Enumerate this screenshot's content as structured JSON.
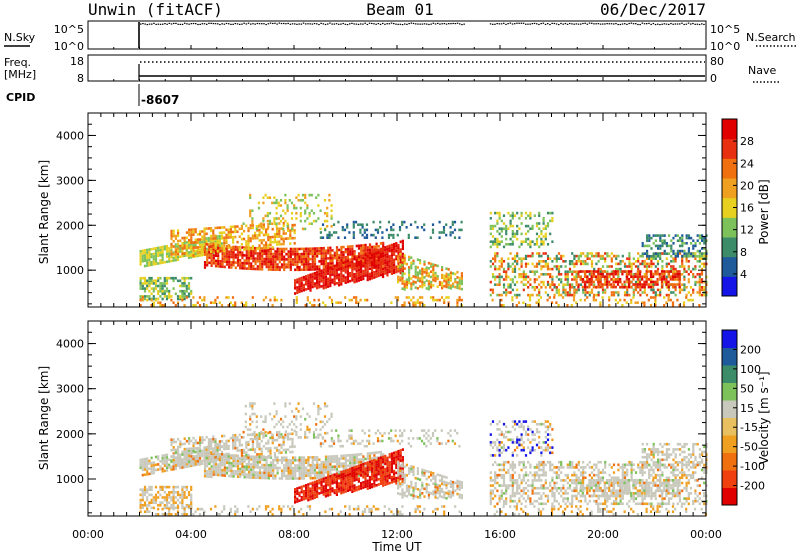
{
  "header": {
    "station": "Unwin (fitACF)",
    "beam": "Beam 01",
    "date": "06/Dec/2017"
  },
  "status_panels": {
    "nsky_label": "N.Sky",
    "nsky_ticks": [
      "10^5",
      "10^0"
    ],
    "nsearch_label": "N.Search",
    "nsearch_ticks": [
      "10^5",
      "10^0"
    ],
    "freq_label_1": "Freq.",
    "freq_label_2": "[MHz]",
    "freq_ticks": [
      "18",
      "8"
    ],
    "nave_label": "Nave",
    "nave_ticks": [
      "80",
      "0"
    ],
    "cpid_label": "CPID",
    "cpid_value": "-8607"
  },
  "colors": {
    "power_scale": [
      "#1515e8",
      "#1f5a9a",
      "#3c8c6a",
      "#7cc15a",
      "#e8d020",
      "#f0a020",
      "#f07010",
      "#e83010",
      "#e00000"
    ],
    "velocity_scale": [
      "#e00000",
      "#f04010",
      "#f07010",
      "#f0a020",
      "#e8c060",
      "#c8c8bc",
      "#7cc15a",
      "#3c8c6a",
      "#1f5a9a",
      "#1515e8"
    ]
  },
  "chart_data": [
    {
      "type": "heatmap",
      "name": "power-panel",
      "ylabel": "Slant Range [km]",
      "xlabel": "Time UT",
      "x_ticks": [
        "00:00",
        "04:00",
        "08:00",
        "12:00",
        "16:00",
        "20:00",
        "00:00"
      ],
      "y_ticks": [
        "1000",
        "2000",
        "3000",
        "4000"
      ],
      "ylim": [
        180,
        4500
      ],
      "xlim_hours": [
        0,
        24
      ],
      "colorbar_label": "Power [dB]",
      "colorbar_ticks": [
        "28",
        "24",
        "20",
        "16",
        "12",
        "8",
        "4"
      ],
      "data_gap_hours": [
        14.6,
        15.6
      ],
      "data_start_hour": 2.0
    },
    {
      "type": "heatmap",
      "name": "velocity-panel",
      "ylabel": "Slant Range [km]",
      "xlabel": "Time UT",
      "x_ticks": [
        "00:00",
        "04:00",
        "08:00",
        "12:00",
        "16:00",
        "20:00",
        "00:00"
      ],
      "y_ticks": [
        "1000",
        "2000",
        "3000",
        "4000"
      ],
      "ylim": [
        180,
        4500
      ],
      "xlim_hours": [
        0,
        24
      ],
      "colorbar_label": "Velocity [m s⁻¹]",
      "colorbar_ticks": [
        "200",
        "100",
        "50",
        "15",
        "-15",
        "-50",
        "-100",
        "-200"
      ],
      "data_gap_hours": [
        14.6,
        15.6
      ],
      "data_start_hour": 2.0
    }
  ]
}
